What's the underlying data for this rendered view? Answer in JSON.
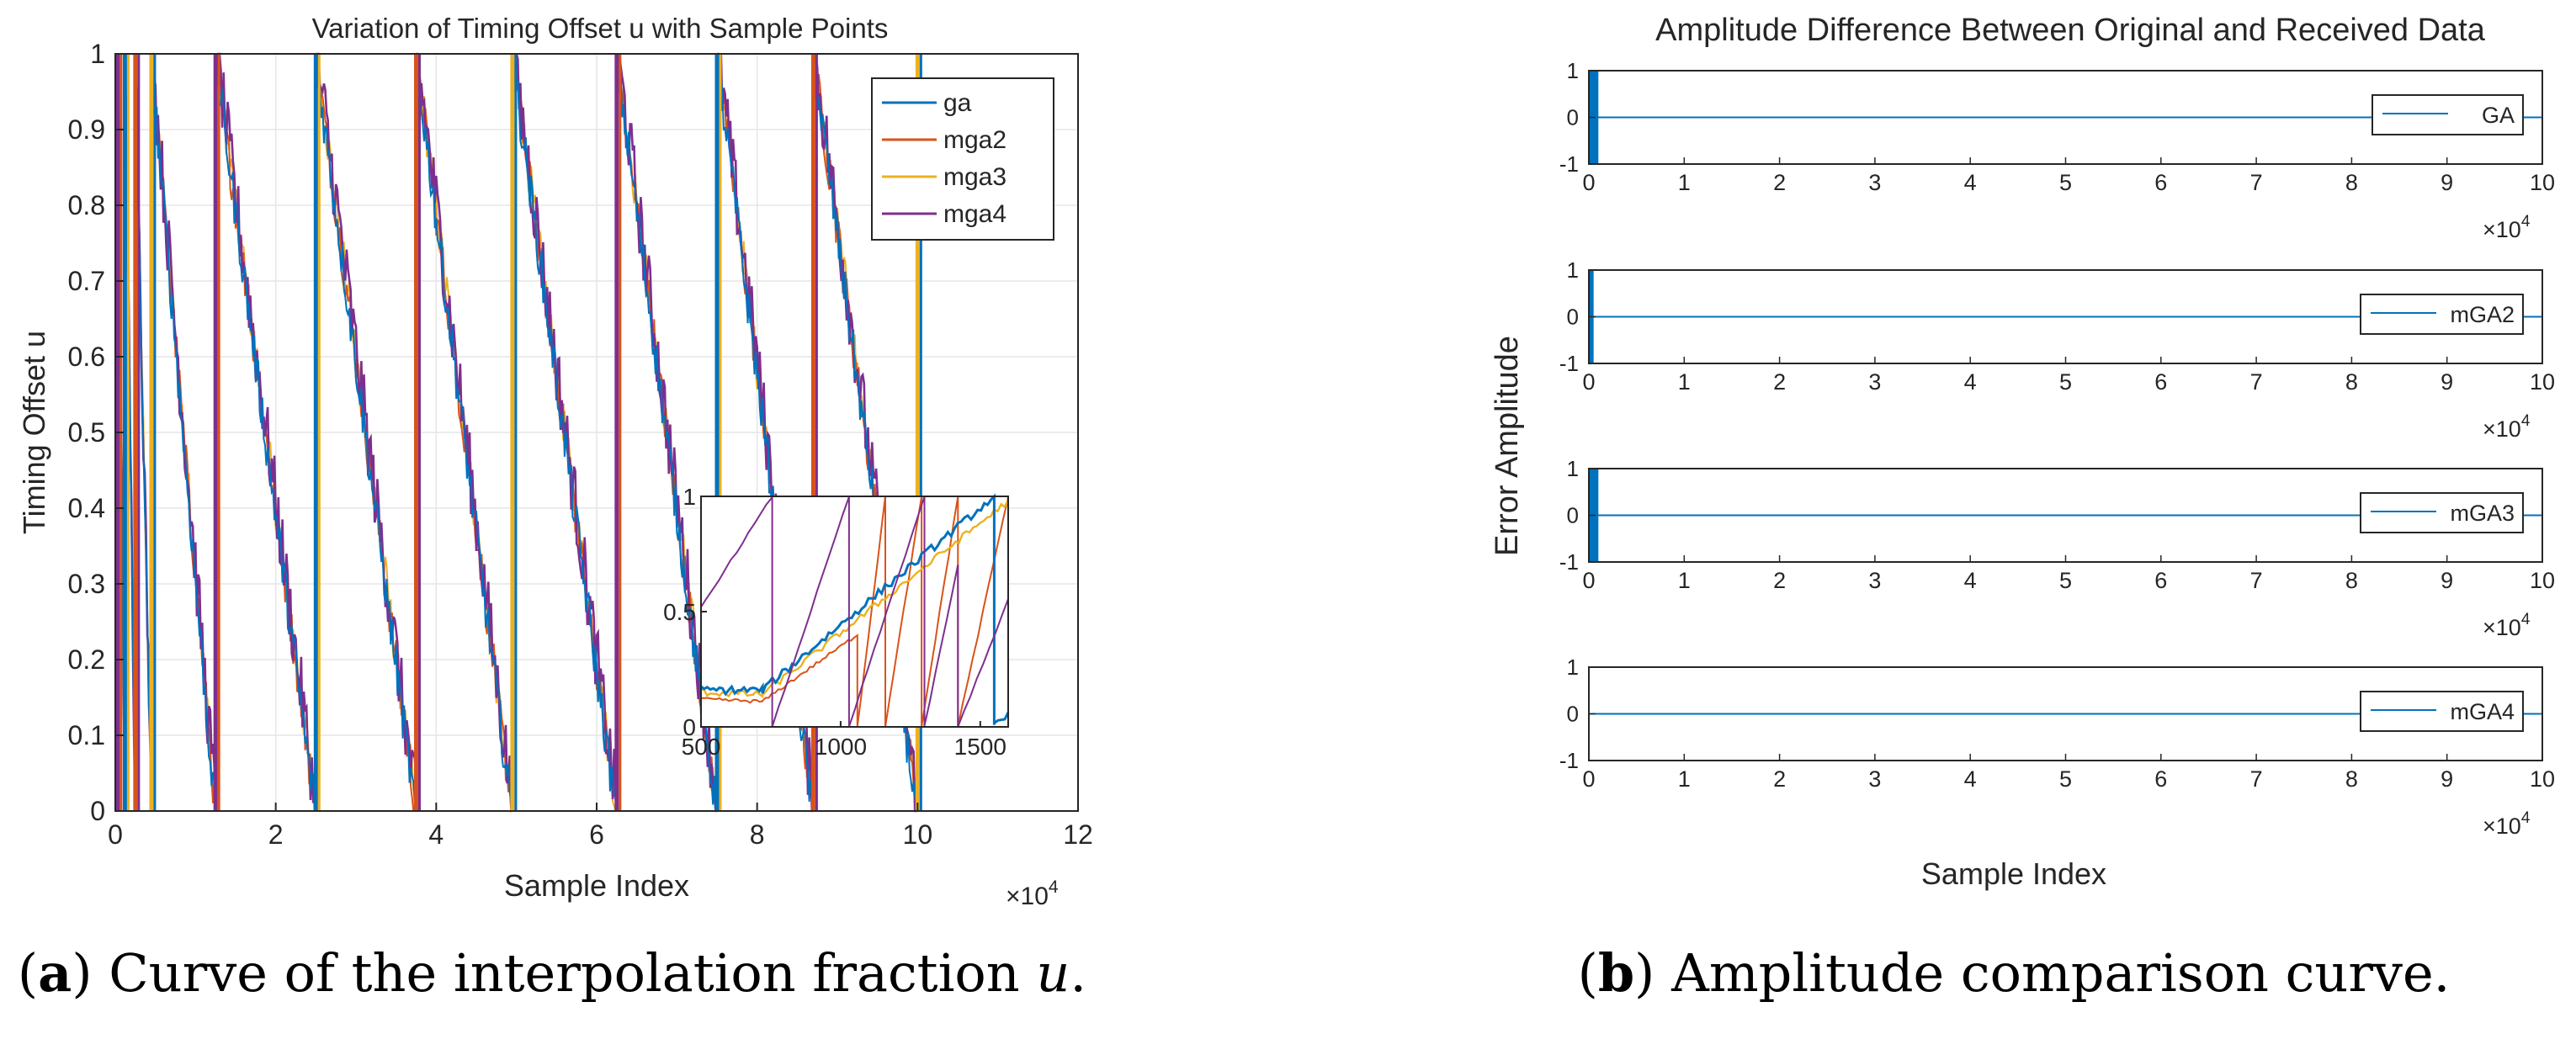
{
  "chart_data": [
    {
      "id": "panel-a",
      "type": "line",
      "title": "Variation of Timing Offset u with Sample Points",
      "xlabel": "Sample Index",
      "ylabel": "Timing Offset u",
      "xlim": [
        0,
        12
      ],
      "ylim": [
        0,
        1
      ],
      "x_exponent": "×10",
      "x_exponent_power": "4",
      "xticks": [
        0,
        2,
        4,
        6,
        8,
        10,
        12
      ],
      "xtick_labels": [
        "0",
        "2",
        "4",
        "6",
        "8",
        "10",
        "12"
      ],
      "yticks": [
        0,
        0.1,
        0.2,
        0.3,
        0.4,
        0.5,
        0.6,
        0.7,
        0.8,
        0.9,
        1
      ],
      "ytick_labels": [
        "0",
        "0.1",
        "0.2",
        "0.3",
        "0.4",
        "0.5",
        "0.6",
        "0.7",
        "0.8",
        "0.9",
        "1"
      ],
      "grid": true,
      "legend_position": "top-right",
      "series": [
        {
          "name": "ga",
          "color": "#0072BD"
        },
        {
          "name": "mga2",
          "color": "#D95319"
        },
        {
          "name": "mga3",
          "color": "#EDB120"
        },
        {
          "name": "mga4",
          "color": "#7E2F8E"
        }
      ],
      "sawtooth_wrap_points": [
        0.03,
        0.12,
        0.25,
        0.45,
        1.25,
        2.5,
        3.75,
        4.95,
        6.25,
        7.5,
        8.7,
        10.0
      ],
      "inset": {
        "xlim": [
          500,
          1600
        ],
        "ylim": [
          0,
          1
        ],
        "xticks": [
          500,
          1000,
          1500
        ],
        "xtick_labels": [
          "500",
          "1000",
          "1500"
        ],
        "yticks": [
          0,
          0.5,
          1
        ],
        "ytick_labels": [
          "0",
          "0.5",
          "1"
        ]
      }
    },
    {
      "id": "panel-b",
      "type": "line",
      "title": "Amplitude Difference Between Original and Received Data",
      "xlabel": "Sample Index",
      "ylabel": "Error Amplitude",
      "xlim": [
        0,
        10
      ],
      "ylim": [
        -1,
        1
      ],
      "x_exponent": "×10",
      "x_exponent_power": "4",
      "xticks": [
        0,
        1,
        2,
        3,
        4,
        5,
        6,
        7,
        8,
        9,
        10
      ],
      "xtick_labels": [
        "0",
        "1",
        "2",
        "3",
        "4",
        "5",
        "6",
        "7",
        "8",
        "9",
        "10"
      ],
      "yticks": [
        -1,
        0,
        1
      ],
      "ytick_labels": [
        "-1",
        "0",
        "1"
      ],
      "legend_position": "right",
      "series": [
        {
          "name": "GA",
          "color": "#0072BD",
          "burst_end_x": 0.1,
          "burst_min": -1,
          "burst_max": 1,
          "steady_value": 0
        },
        {
          "name": "mGA2",
          "color": "#0072BD",
          "burst_end_x": 0.05,
          "burst_min": -1,
          "burst_max": 1,
          "steady_value": 0
        },
        {
          "name": "mGA3",
          "color": "#0072BD",
          "burst_end_x": 0.1,
          "burst_min": -1,
          "burst_max": 1,
          "steady_value": 0
        },
        {
          "name": "mGA4",
          "color": "#0072BD",
          "burst_end_x": 0,
          "burst_min": 0,
          "burst_max": 0,
          "steady_value": 0
        }
      ]
    }
  ],
  "captions": {
    "a_letter": "a",
    "a_text": "Curve of the interpolation fraction",
    "a_var": "u",
    "a_end": ".",
    "b_letter": "b",
    "b_text": "Amplitude comparison curve."
  }
}
